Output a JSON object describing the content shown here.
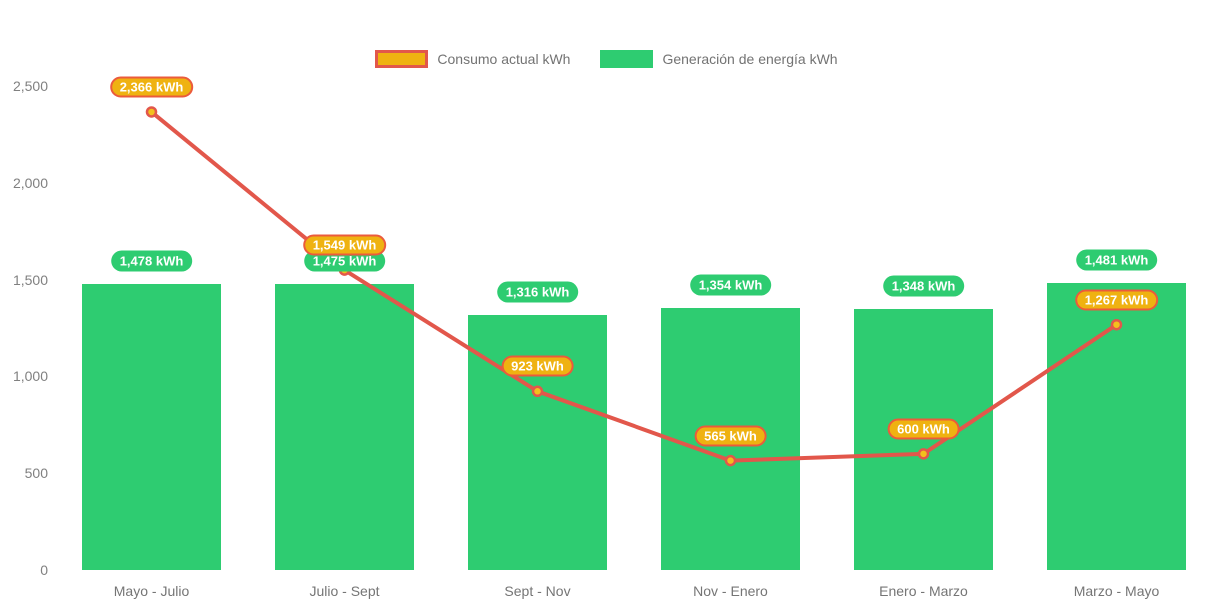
{
  "chart_data": {
    "type": "bar",
    "subtype": "combo bar + line with data labels",
    "title": "",
    "xlabel": "",
    "ylabel": "",
    "categories": [
      "Mayo - Julio",
      "Julio - Sept",
      "Sept - Nov",
      "Nov - Enero",
      "Enero - Marzo",
      "Marzo - Mayo"
    ],
    "series": [
      {
        "name": "Consumo actual kWh",
        "type": "line",
        "color": "#E2574B",
        "marker_fill": "#F3C01D",
        "label_fill": "#EFB211",
        "label_border": "#EB5B3C",
        "values": [
          2366,
          1549,
          923,
          565,
          600,
          1267
        ],
        "labels": [
          "2,366 kWh",
          "1,549 kWh",
          "923 kWh",
          "565 kWh",
          "600 kWh",
          "1,267 kWh"
        ]
      },
      {
        "name": "Generación de energía kWh",
        "type": "bar",
        "color": "#2ECC71",
        "values": [
          1478,
          1475,
          1316,
          1354,
          1348,
          1481
        ],
        "labels": [
          "1,478 kWh",
          "1,475 kWh",
          "1,316 kWh",
          "1,354 kWh",
          "1,348 kWh",
          "1,481 kWh"
        ]
      }
    ],
    "yticks": [
      {
        "value": 0,
        "label": "0"
      },
      {
        "value": 500,
        "label": "500"
      },
      {
        "value": 1000,
        "label": "1,000"
      },
      {
        "value": 1500,
        "label": "1,500"
      },
      {
        "value": 2000,
        "label": "2,000"
      },
      {
        "value": 2500,
        "label": "2,500"
      }
    ],
    "ylim": [
      0,
      2500
    ],
    "grid": false,
    "legend_position": "top-center"
  },
  "colors": {
    "background": "#FFFFFF",
    "bar_green": "#2ECC71",
    "line_red": "#E2574B",
    "pill_amber": "#EFB211",
    "pill_border_red": "#EB5B3C",
    "marker_gold": "#F3C01D",
    "axis_text": "#808080",
    "legend_text": "#737373"
  }
}
